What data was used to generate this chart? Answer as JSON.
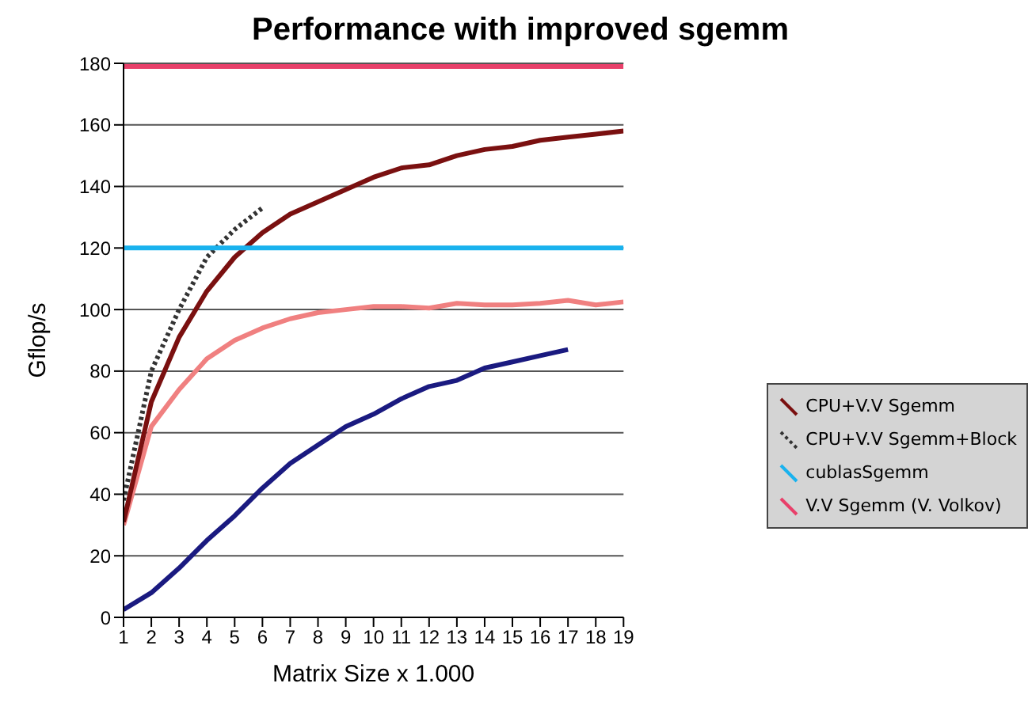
{
  "chart_data": {
    "type": "line",
    "title": "Performance with improved sgemm",
    "xlabel": "Matrix Size x 1.000",
    "ylabel": "Gflop/s",
    "x": [
      1,
      2,
      3,
      4,
      5,
      6,
      7,
      8,
      9,
      10,
      11,
      12,
      13,
      14,
      15,
      16,
      17,
      18,
      19
    ],
    "xlim": [
      1,
      19
    ],
    "xticks": [
      1,
      2,
      3,
      4,
      5,
      6,
      7,
      8,
      9,
      10,
      11,
      12,
      13,
      14,
      15,
      16,
      17,
      18,
      19
    ],
    "ylim": [
      0,
      180
    ],
    "yticks": [
      0,
      20,
      40,
      60,
      80,
      100,
      120,
      140,
      160,
      180
    ],
    "grid": "y",
    "legend": "right",
    "marker": "none",
    "series": [
      {
        "color": "#1a1a80",
        "values": [
          2.5,
          8,
          16,
          25,
          33,
          42,
          50,
          56,
          62,
          66,
          71,
          75,
          77,
          81,
          83,
          85,
          87,
          null,
          null
        ]
      },
      {
        "color": "#f08080",
        "values": [
          30,
          62,
          74,
          84,
          90,
          94,
          97,
          99,
          100,
          101,
          101,
          100.5,
          102,
          101.5,
          101.5,
          102,
          103,
          101.5,
          102.5
        ]
      },
      {
        "name": "CPU+V.V Sgemm",
        "color": "#7a1010",
        "values": [
          31,
          70,
          91,
          106,
          117,
          125,
          131,
          135,
          139,
          143,
          146,
          147,
          150,
          152,
          153,
          155,
          156,
          157,
          158
        ]
      },
      {
        "name": "CPU+V.V Sgemm+Block",
        "color": "#333333",
        "line_style": "dotted",
        "values": [
          38,
          80,
          100,
          117,
          126,
          133,
          null,
          null,
          null,
          null,
          null,
          null,
          null,
          null,
          null,
          null,
          null,
          null,
          null
        ]
      },
      {
        "name": "cublasSgemm",
        "color": "#19b2ee",
        "values": [
          120,
          120,
          120,
          120,
          120,
          120,
          120,
          120,
          120,
          120,
          120,
          120,
          120,
          120,
          120,
          120,
          120,
          120,
          120
        ]
      },
      {
        "name": "V.V Sgemm (V. Volkov)",
        "color": "#e8406a",
        "values": [
          179,
          179,
          179,
          179,
          179,
          179,
          179,
          179,
          179,
          179,
          179,
          179,
          179,
          179,
          179,
          179,
          179,
          179,
          179
        ]
      }
    ]
  }
}
